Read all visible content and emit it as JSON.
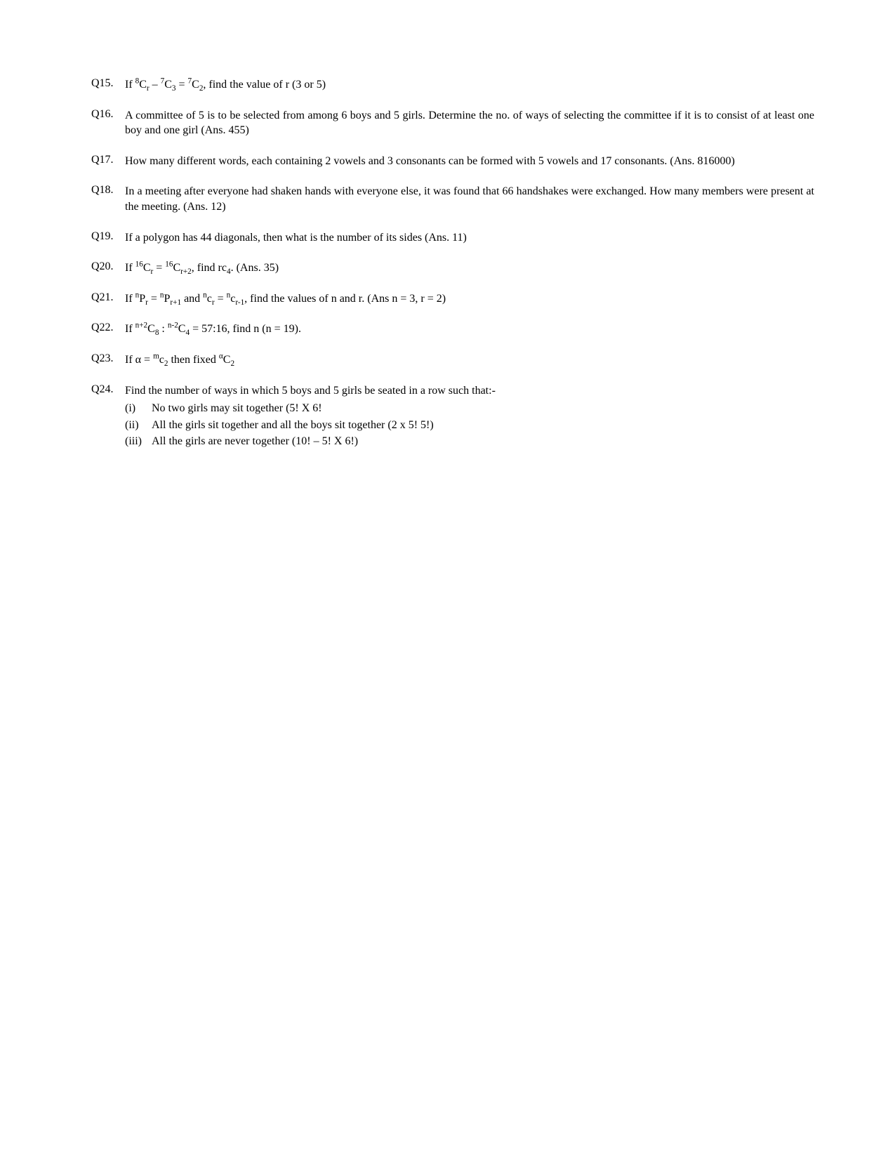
{
  "questions": [
    {
      "num": "Q15.",
      "html": "If <sup>8</sup>C<sub>r</sub> – <sup>7</sup>C<sub>3</sub> = <sup>7</sup>C<sub>2</sub>, find the value of r (3 or 5)"
    },
    {
      "num": "Q16.",
      "html": "A committee of 5 is to be selected from among 6 boys and 5 girls.  Determine the no. of ways of selecting the committee if it is to consist of at least one boy and one girl (Ans. 455)"
    },
    {
      "num": "Q17.",
      "html": "How many different words, each containing 2 vowels and 3 consonants can be formed with 5 vowels and 17 consonants. (Ans. 816000)"
    },
    {
      "num": "Q18.",
      "html": "In a meeting after everyone had shaken hands with everyone else, it was found that 66 handshakes were exchanged.  How many members were present at the meeting. (Ans. 12)"
    },
    {
      "num": "Q19.",
      "html": "If a polygon has 44 diagonals, then what is the number of its sides (Ans. 11)"
    },
    {
      "num": "Q20.",
      "html": "If <sup>16</sup>C<sub>r</sub> = <sup>16</sup>C<sub>r+2</sub>, find rc<sub>4</sub>. (Ans. 35)"
    },
    {
      "num": "Q21.",
      "html": "If <sup>n</sup>P<sub>r</sub> = <sup>n</sup>P<sub>r+1</sub> and  <sup>n</sup>c<sub>r</sub> = <sup>n</sup>c<sub>r-1</sub>, find the values of n and r.  (Ans n = 3, r = 2)"
    },
    {
      "num": "Q22.",
      "html": "If <sup>n+2</sup>C<sub>8</sub> : <sup>n-2</sup>C<sub>4</sub> = 57:16, find n (n = 19)."
    },
    {
      "num": "Q23.",
      "html": "If α = <sup>m</sup>c<sub>2</sub>  then fixed <sup>α</sup>C<sub>2</sub>"
    },
    {
      "num": "Q24.",
      "html": "Find the number of ways in which 5 boys and 5 girls be seated in a row such that:-",
      "subs": [
        {
          "n": "(i)",
          "t": "No two girls may sit together (5! X 6!"
        },
        {
          "n": "(ii)",
          "t": "All the girls sit together and all the boys sit together (2 x 5! 5!)"
        },
        {
          "n": "(iii)",
          "t": "All the girls are never together (10! – 5! X 6!)"
        }
      ]
    }
  ]
}
